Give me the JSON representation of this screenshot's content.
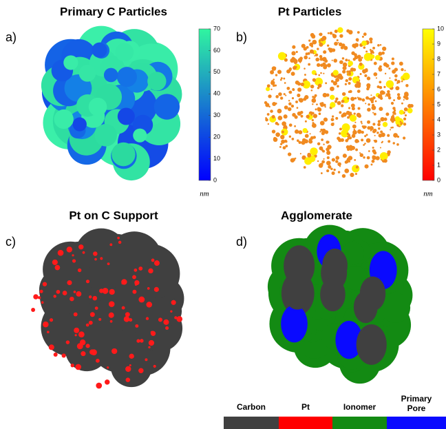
{
  "panels": [
    {
      "label": "a)",
      "title": "Primary C Particles",
      "colorbar": {
        "range": [
          0,
          70
        ],
        "ticks": [
          0,
          10,
          20,
          30,
          40,
          50,
          60,
          70
        ],
        "unit": "nm"
      }
    },
    {
      "label": "b)",
      "title": "Pt Particles",
      "colorbar": {
        "range": [
          0,
          10
        ],
        "ticks": [
          0,
          1,
          2,
          3,
          4,
          5,
          6,
          7,
          8,
          9,
          10
        ],
        "unit": "nm"
      }
    },
    {
      "label": "c)",
      "title": "Pt on C Support"
    },
    {
      "label": "d)",
      "title": "Agglomerate"
    }
  ],
  "legend": [
    {
      "label": "Carbon",
      "color": "#404040"
    },
    {
      "label": "Pt",
      "color": "#ff0000"
    },
    {
      "label": "Ionomer",
      "color": "#138a13"
    },
    {
      "label": "Primary Pore",
      "color": "#0a0aff"
    }
  ]
}
